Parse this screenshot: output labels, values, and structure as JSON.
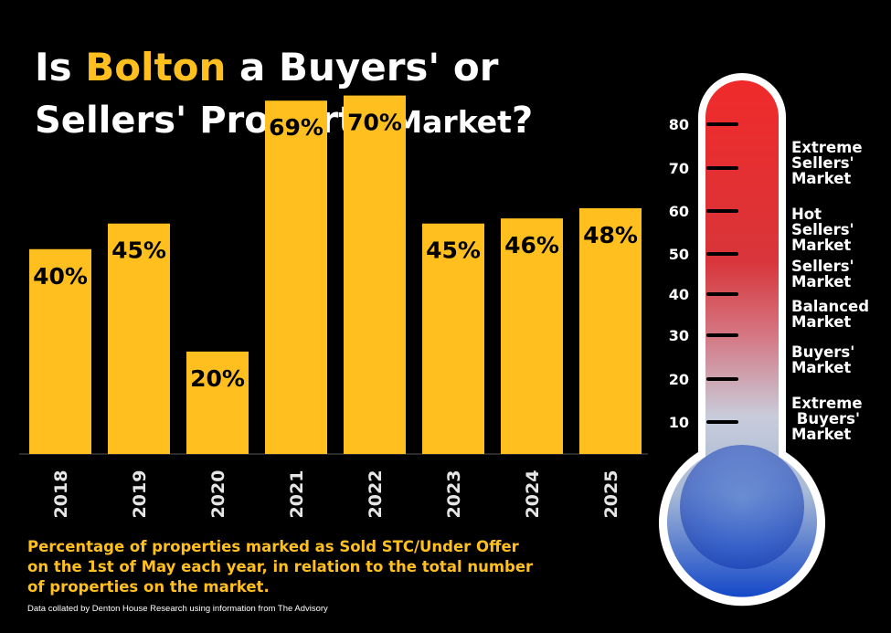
{
  "title": {
    "part1": "Is ",
    "highlight": "Bolton",
    "part2": " a Buyers' or",
    "line2": "Sellers' Property ",
    "line2_small": "Market",
    "line2_end": "?"
  },
  "colors": {
    "bar": "#FFC01F",
    "highlight": "#FFC01F",
    "background": "#000000"
  },
  "chart_data": {
    "type": "bar",
    "categories": [
      "2018",
      "2019",
      "2020",
      "2021",
      "2022",
      "2023",
      "2024",
      "2025"
    ],
    "values": [
      40,
      45,
      20,
      69,
      70,
      45,
      46,
      48
    ],
    "data_labels": [
      "40%",
      "45%",
      "20%",
      "69%",
      "70%",
      "45%",
      "46%",
      "48%"
    ],
    "ylim": [
      0,
      80
    ],
    "grid": false,
    "legend": "none"
  },
  "caption": "Percentage of properties marked as Sold STC/Under Offer on the 1st of May each year, in relation to the total number of properties on the market.",
  "credit": "Data collated by Denton House Research using information from The Advisory",
  "thermometer": {
    "ticks": [
      "80",
      "70",
      "60",
      "50",
      "40",
      "30",
      "20",
      "10"
    ],
    "zones": [
      {
        "label": "Extreme Sellers' Market",
        "lines": [
          "Extreme",
          "Sellers'",
          "Market"
        ]
      },
      {
        "label": "Hot Sellers' Market",
        "lines": [
          "Hot",
          "Sellers'",
          "Market"
        ]
      },
      {
        "label": "Sellers' Market",
        "lines": [
          "Sellers'",
          "Market"
        ]
      },
      {
        "label": "Balanced Market",
        "lines": [
          "Balanced",
          "Market"
        ]
      },
      {
        "label": "Buyers' Market",
        "lines": [
          "Buyers'",
          "Market"
        ]
      },
      {
        "label": "Extreme Buyers' Market",
        "lines": [
          "Extreme",
          " Buyers'",
          "Market"
        ]
      }
    ]
  }
}
